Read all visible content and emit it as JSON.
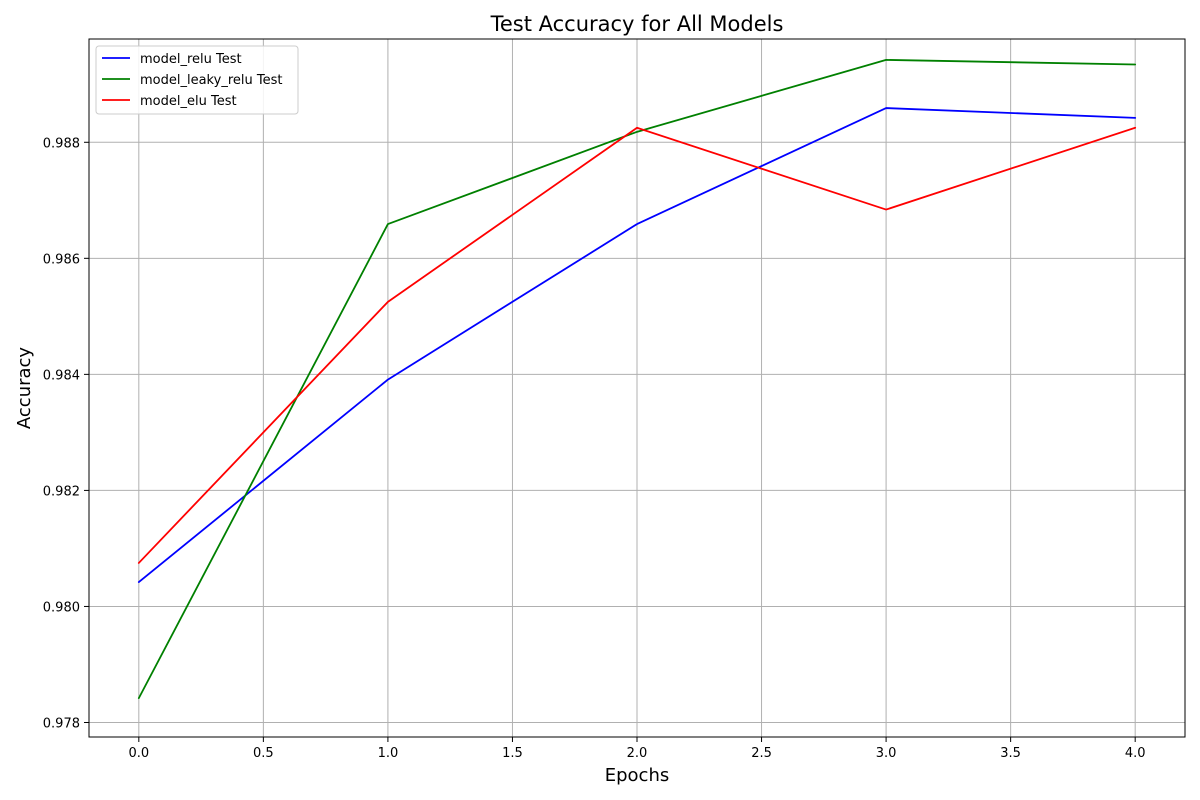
{
  "chart_data": {
    "type": "line",
    "title": "Test Accuracy for All Models",
    "xlabel": "Epochs",
    "ylabel": "Accuracy",
    "x": [
      0,
      1,
      2,
      3,
      4
    ],
    "xlim": [
      -0.2,
      4.2
    ],
    "ylim": [
      0.97775,
      0.98978
    ],
    "xticks": [
      0.0,
      0.5,
      1.0,
      1.5,
      2.0,
      2.5,
      3.0,
      3.5,
      4.0
    ],
    "xtick_labels": [
      "0.0",
      "0.5",
      "1.0",
      "1.5",
      "2.0",
      "2.5",
      "3.0",
      "3.5",
      "4.0"
    ],
    "yticks": [
      0.978,
      0.98,
      0.982,
      0.984,
      0.986,
      0.988
    ],
    "ytick_labels": [
      "0.978",
      "0.980",
      "0.982",
      "0.984",
      "0.986",
      "0.988"
    ],
    "grid": true,
    "legend_position": "upper-left",
    "series": [
      {
        "name": "model_relu Test",
        "color": "#0000ff",
        "values": [
          0.98042,
          0.98391,
          0.98659,
          0.98859,
          0.98842
        ]
      },
      {
        "name": "model_leaky_relu Test",
        "color": "#008000",
        "values": [
          0.97842,
          0.98659,
          0.98818,
          0.98942,
          0.98934
        ]
      },
      {
        "name": "model_elu Test",
        "color": "#ff0000",
        "values": [
          0.98075,
          0.98525,
          0.98825,
          0.98684,
          0.98825
        ]
      }
    ]
  }
}
